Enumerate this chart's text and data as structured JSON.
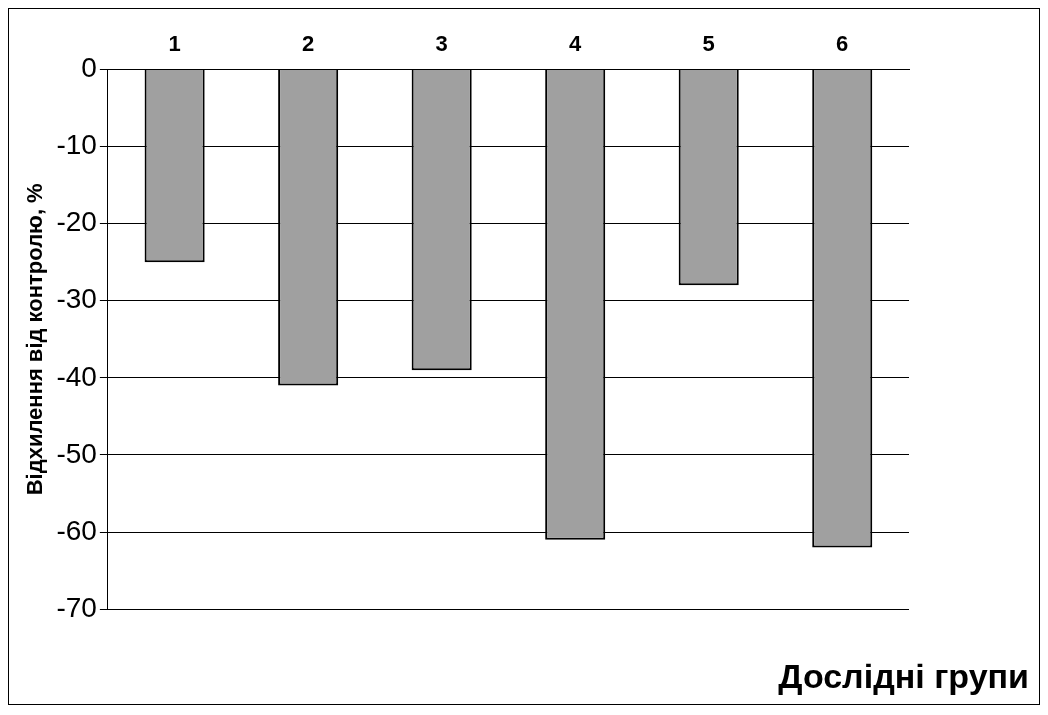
{
  "chart_data": {
    "type": "bar",
    "xlabel": "Дослідні групи",
    "ylabel": "Відхилення від контролю, %",
    "categories": [
      "1",
      "2",
      "3",
      "4",
      "5",
      "6"
    ],
    "values": [
      -25,
      -41,
      -39,
      -61,
      -28,
      -62
    ],
    "color": "#a0a0a0",
    "ylim": [
      -70,
      0
    ],
    "yticks": [
      0,
      -10,
      -20,
      -30,
      -40,
      -50,
      -60,
      -70
    ],
    "grid": "y",
    "legend": false
  }
}
